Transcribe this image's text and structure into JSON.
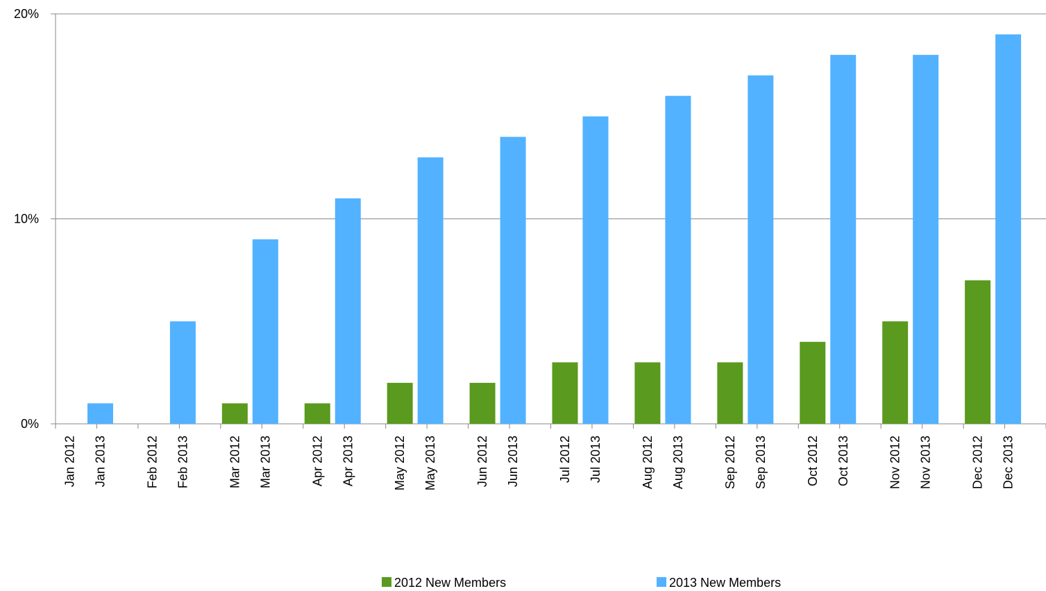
{
  "chart_data": {
    "type": "bar",
    "series": [
      {
        "name": "2012 New Members",
        "color": "#5a9a1e",
        "labels": [
          "Jan 2012",
          "Feb 2012",
          "Mar 2012",
          "Apr 2012",
          "May 2012",
          "Jun 2012",
          "Jul 2012",
          "Aug 2012",
          "Sep 2012",
          "Oct 2012",
          "Nov 2012",
          "Dec 2012"
        ],
        "values": [
          0,
          0,
          1,
          1,
          2,
          2,
          3,
          3,
          3,
          4,
          5,
          7
        ]
      },
      {
        "name": "2013 New Members",
        "color": "#52b2ff",
        "labels": [
          "Jan 2013",
          "Feb 2013",
          "Mar 2013",
          "Apr 2013",
          "May 2013",
          "Jun 2013",
          "Jul 2013",
          "Aug 2013",
          "Sep 2013",
          "Oct 2013",
          "Nov 2013",
          "Dec 2013"
        ],
        "values": [
          1,
          5,
          9,
          11,
          13,
          14,
          15,
          16,
          17,
          18,
          18,
          19
        ]
      }
    ],
    "ylim": [
      0,
      20
    ],
    "yticks": [
      {
        "value": 0,
        "label": "0%"
      },
      {
        "value": 10,
        "label": "10%"
      },
      {
        "value": 20,
        "label": "20%"
      }
    ],
    "grid": true,
    "legend": "bottom"
  }
}
